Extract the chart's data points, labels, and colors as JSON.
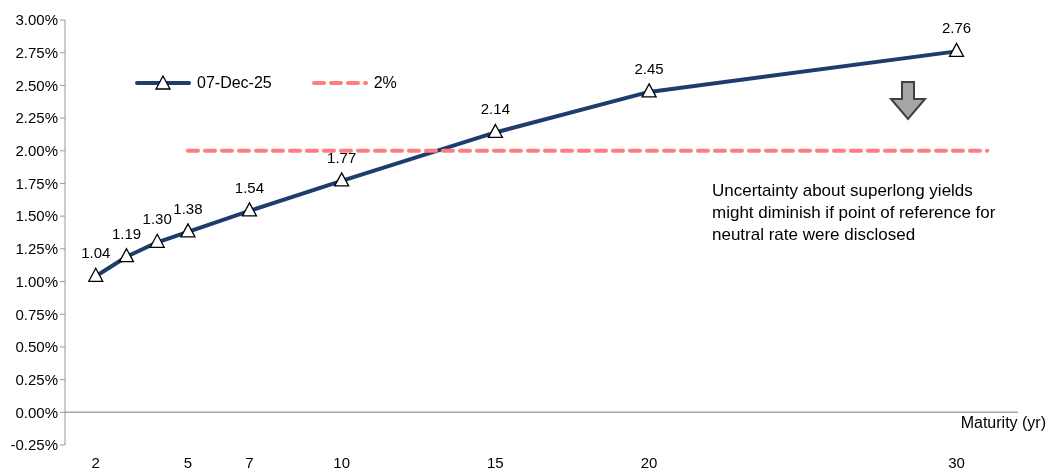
{
  "chart_data": {
    "type": "line",
    "xlabel": "Maturity (yr)",
    "xlim": [
      1,
      32
    ],
    "xticks": [
      2,
      5,
      7,
      10,
      15,
      20,
      30
    ],
    "ylim": [
      -0.25,
      3
    ],
    "yticks": [
      {
        "value": -0.25,
        "label": "-0.25%"
      },
      {
        "value": 0,
        "label": "0.00%"
      },
      {
        "value": 0.25,
        "label": "0.25%"
      },
      {
        "value": 0.5,
        "label": "0.50%"
      },
      {
        "value": 0.75,
        "label": "0.75%"
      },
      {
        "value": 1,
        "label": "1.00%"
      },
      {
        "value": 1.25,
        "label": "1.25%"
      },
      {
        "value": 1.5,
        "label": "1.50%"
      },
      {
        "value": 1.75,
        "label": "1.75%"
      },
      {
        "value": 2,
        "label": "2.00%"
      },
      {
        "value": 2.25,
        "label": "2.25%"
      },
      {
        "value": 2.5,
        "label": "2.50%"
      },
      {
        "value": 2.75,
        "label": "2.75%"
      },
      {
        "value": 3,
        "label": "3.00%"
      }
    ],
    "grid": false,
    "legend": "top left",
    "ref_lines": [
      {
        "axis": "y",
        "value": 0,
        "color": "#a6a6a6",
        "line_style": "solid"
      }
    ],
    "series": [
      {
        "name": "07-Dec-25",
        "color": "#1f3c6e",
        "marker": "triangle",
        "line_style": "solid",
        "x": [
          2,
          3,
          4,
          5,
          7,
          10,
          15,
          20,
          30
        ],
        "values": [
          1.04,
          1.19,
          1.3,
          1.38,
          1.54,
          1.77,
          2.14,
          2.45,
          2.76
        ],
        "value_labels": [
          "1.04",
          "1.19",
          "1.30",
          "1.38",
          "1.54",
          "1.77",
          "2.14",
          "2.45",
          "2.76"
        ]
      },
      {
        "name": "2%",
        "color": "#ff7c80",
        "marker": "none",
        "line_style": "dashed",
        "x": [
          5,
          31
        ],
        "values": [
          2,
          2
        ]
      }
    ],
    "annotations": [
      "Uncertainty about superlong yields might diminish if point of reference for neutral rate were disclosed"
    ]
  }
}
